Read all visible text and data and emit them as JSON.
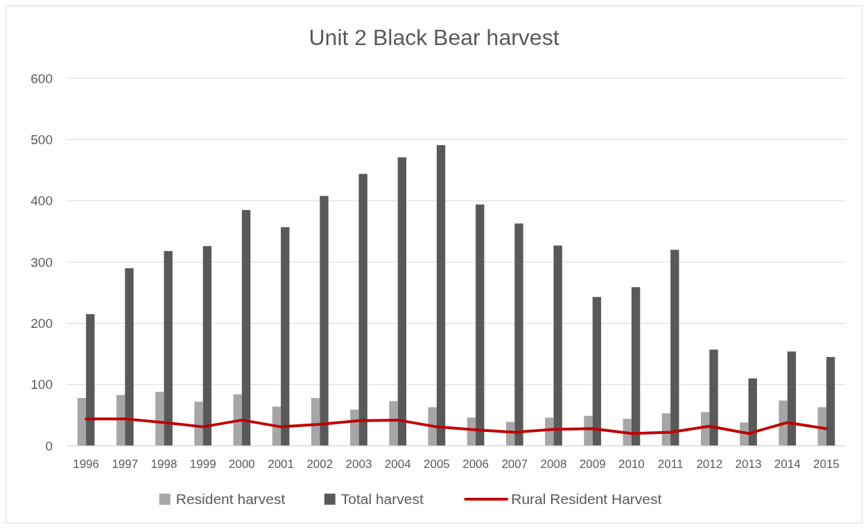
{
  "chart_data": {
    "type": "bar",
    "title": "Unit 2 Black Bear harvest",
    "categories": [
      "1996",
      "1997",
      "1998",
      "1999",
      "2000",
      "2001",
      "2002",
      "2003",
      "2004",
      "2005",
      "2006",
      "2007",
      "2008",
      "2009",
      "2010",
      "2011",
      "2012",
      "2013",
      "2014",
      "2015"
    ],
    "series": [
      {
        "name": "Resident harvest",
        "color": "#a6a6a6",
        "values": [
          78,
          83,
          88,
          72,
          84,
          64,
          78,
          59,
          73,
          63,
          46,
          39,
          46,
          49,
          44,
          53,
          55,
          38,
          74,
          63
        ]
      },
      {
        "name": "Total harvest",
        "color": "#595959",
        "values": [
          215,
          290,
          318,
          326,
          385,
          357,
          408,
          444,
          471,
          491,
          394,
          363,
          327,
          243,
          259,
          320,
          157,
          110,
          154,
          145
        ]
      },
      {
        "name": "Rural Resident Harvest",
        "type": "line",
        "color": "#c00000",
        "values": [
          44,
          44,
          38,
          31,
          42,
          31,
          35,
          41,
          42,
          31,
          26,
          22,
          27,
          28,
          20,
          22,
          32,
          20,
          38,
          28
        ]
      }
    ],
    "ylim": [
      0,
      600
    ],
    "yticks": [
      0,
      100,
      200,
      300,
      400,
      500,
      600
    ],
    "grid": "y",
    "legend": "bottom",
    "marker": "none",
    "line_style": "solid"
  }
}
